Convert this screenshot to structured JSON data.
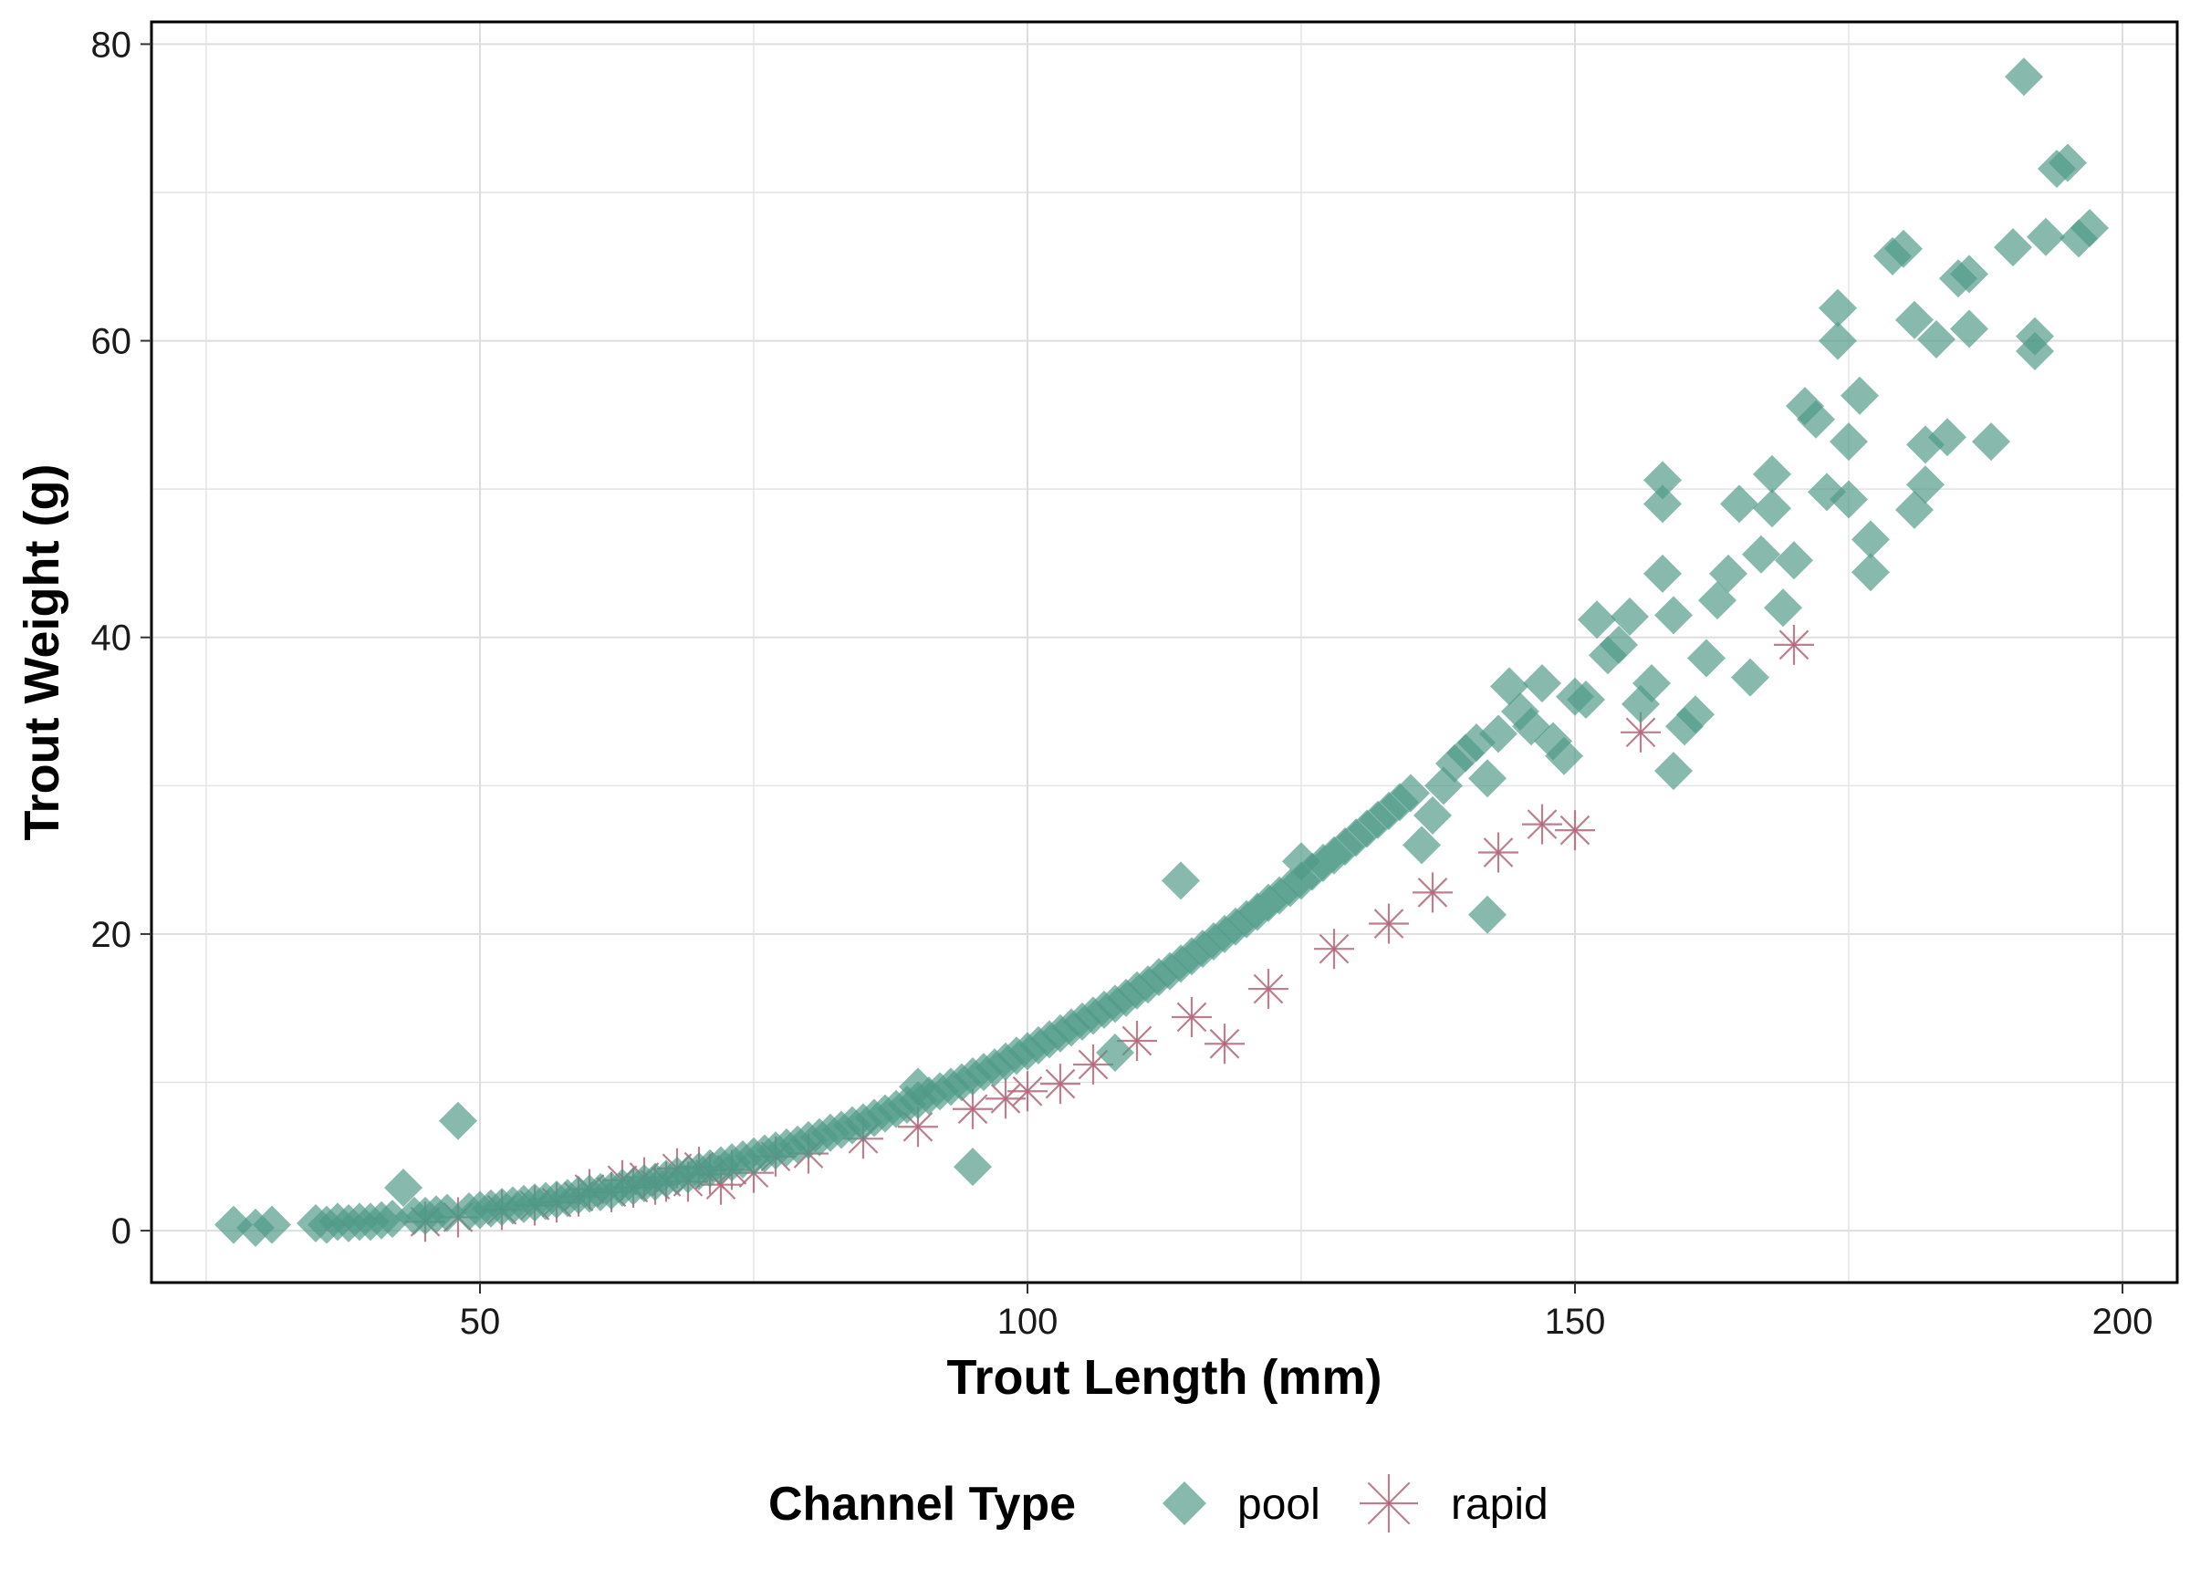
{
  "chart_data": {
    "type": "scatter",
    "title": "",
    "xlabel": "Trout Length (mm)",
    "ylabel": "Trout Weight (g)",
    "xlim": [
      20,
      205
    ],
    "ylim": [
      -3.5,
      81.5
    ],
    "x_ticks": [
      50,
      100,
      150,
      200
    ],
    "y_ticks": [
      0,
      20,
      40,
      60,
      80
    ],
    "grid": true,
    "legend": {
      "title": "Channel Type",
      "position": "bottom"
    },
    "series": [
      {
        "name": "pool",
        "marker": "diamond",
        "color": "#4e9a86",
        "points": [
          [
            27.5,
            0.4
          ],
          [
            29.5,
            0.2
          ],
          [
            31,
            0.4
          ],
          [
            35,
            0.5
          ],
          [
            36,
            0.4
          ],
          [
            37,
            0.6
          ],
          [
            38,
            0.5
          ],
          [
            39,
            0.6
          ],
          [
            40,
            0.6
          ],
          [
            41,
            0.7
          ],
          [
            42,
            0.8
          ],
          [
            43,
            2.9
          ],
          [
            44,
            1.0
          ],
          [
            45,
            1.0
          ],
          [
            46,
            1.1
          ],
          [
            47,
            1.2
          ],
          [
            48,
            7.4
          ],
          [
            49,
            1.3
          ],
          [
            50,
            1.4
          ],
          [
            51,
            1.5
          ],
          [
            52,
            1.6
          ],
          [
            53,
            1.7
          ],
          [
            54,
            1.8
          ],
          [
            55,
            1.9
          ],
          [
            56,
            2.0
          ],
          [
            57,
            2.1
          ],
          [
            58,
            2.2
          ],
          [
            59,
            2.4
          ],
          [
            60,
            2.5
          ],
          [
            61,
            2.6
          ],
          [
            62,
            2.7
          ],
          [
            63,
            2.9
          ],
          [
            64,
            3.0
          ],
          [
            65,
            3.2
          ],
          [
            66,
            3.3
          ],
          [
            67,
            3.5
          ],
          [
            68,
            3.7
          ],
          [
            69,
            3.8
          ],
          [
            70,
            4.0
          ],
          [
            71,
            4.2
          ],
          [
            72,
            4.4
          ],
          [
            73,
            4.6
          ],
          [
            74,
            4.8
          ],
          [
            75,
            5.0
          ],
          [
            76,
            5.2
          ],
          [
            77,
            5.4
          ],
          [
            78,
            5.6
          ],
          [
            79,
            5.8
          ],
          [
            80,
            6.1
          ],
          [
            81,
            6.3
          ],
          [
            82,
            6.6
          ],
          [
            83,
            6.8
          ],
          [
            84,
            7.1
          ],
          [
            85,
            7.3
          ],
          [
            86,
            7.6
          ],
          [
            87,
            7.9
          ],
          [
            88,
            8.2
          ],
          [
            89,
            8.5
          ],
          [
            90,
            8.8
          ],
          [
            90,
            9.7
          ],
          [
            91,
            9.1
          ],
          [
            92,
            9.4
          ],
          [
            93,
            9.7
          ],
          [
            94,
            10.0
          ],
          [
            95,
            10.4
          ],
          [
            95,
            4.3
          ],
          [
            96,
            10.7
          ],
          [
            97,
            11.0
          ],
          [
            98,
            11.4
          ],
          [
            99,
            11.8
          ],
          [
            100,
            12.1
          ],
          [
            101,
            12.5
          ],
          [
            102,
            12.9
          ],
          [
            103,
            13.3
          ],
          [
            104,
            13.7
          ],
          [
            105,
            14.1
          ],
          [
            106,
            14.5
          ],
          [
            107,
            14.9
          ],
          [
            108,
            15.3
          ],
          [
            108,
            12.0
          ],
          [
            109,
            15.7
          ],
          [
            110,
            16.2
          ],
          [
            111,
            16.6
          ],
          [
            112,
            17.1
          ],
          [
            113,
            17.5
          ],
          [
            114,
            23.6
          ],
          [
            114,
            18.0
          ],
          [
            115,
            18.5
          ],
          [
            116,
            19.0
          ],
          [
            117,
            19.5
          ],
          [
            118,
            20.0
          ],
          [
            119,
            20.5
          ],
          [
            120,
            21.0
          ],
          [
            121,
            21.5
          ],
          [
            122,
            22.1
          ],
          [
            123,
            22.6
          ],
          [
            124,
            23.1
          ],
          [
            125,
            24.9
          ],
          [
            125,
            23.6
          ],
          [
            126,
            24.2
          ],
          [
            127,
            24.8
          ],
          [
            128,
            25.3
          ],
          [
            129,
            25.9
          ],
          [
            130,
            26.5
          ],
          [
            131,
            27.1
          ],
          [
            132,
            27.7
          ],
          [
            133,
            28.3
          ],
          [
            134,
            28.9
          ],
          [
            135,
            29.5
          ],
          [
            136,
            26.0
          ],
          [
            137,
            28.0
          ],
          [
            138,
            30.0
          ],
          [
            139,
            31.5
          ],
          [
            140,
            32.2
          ],
          [
            141,
            32.9
          ],
          [
            142,
            21.3
          ],
          [
            142,
            30.5
          ],
          [
            143,
            33.5
          ],
          [
            144,
            36.7
          ],
          [
            145,
            35.0
          ],
          [
            146,
            34.0
          ],
          [
            147,
            36.9
          ],
          [
            148,
            33.0
          ],
          [
            149,
            32.0
          ],
          [
            150,
            36.0
          ],
          [
            151,
            35.8
          ],
          [
            152,
            41.2
          ],
          [
            153,
            38.8
          ],
          [
            154,
            39.5
          ],
          [
            155,
            41.4
          ],
          [
            156,
            35.5
          ],
          [
            157,
            36.9
          ],
          [
            158,
            50.6
          ],
          [
            158,
            44.3
          ],
          [
            158,
            49.0
          ],
          [
            159,
            41.5
          ],
          [
            159,
            31.0
          ],
          [
            160,
            34.0
          ],
          [
            161,
            34.8
          ],
          [
            162,
            38.6
          ],
          [
            163,
            42.5
          ],
          [
            164,
            44.3
          ],
          [
            165,
            49.0
          ],
          [
            166,
            37.3
          ],
          [
            167,
            45.6
          ],
          [
            168,
            51.0
          ],
          [
            168,
            48.7
          ],
          [
            169,
            42.0
          ],
          [
            170,
            45.2
          ],
          [
            171,
            55.6
          ],
          [
            172,
            54.7
          ],
          [
            173,
            49.8
          ],
          [
            174,
            62.2
          ],
          [
            174,
            60.0
          ],
          [
            175,
            53.2
          ],
          [
            175,
            49.3
          ],
          [
            176,
            56.3
          ],
          [
            177,
            46.6
          ],
          [
            177,
            44.4
          ],
          [
            179,
            65.7
          ],
          [
            180,
            66.2
          ],
          [
            181,
            61.4
          ],
          [
            181,
            48.6
          ],
          [
            182,
            53.0
          ],
          [
            182,
            50.3
          ],
          [
            183,
            60.1
          ],
          [
            184,
            53.5
          ],
          [
            185,
            64.2
          ],
          [
            186,
            64.5
          ],
          [
            186,
            60.8
          ],
          [
            188,
            53.2
          ],
          [
            190,
            66.3
          ],
          [
            191,
            77.8
          ],
          [
            192,
            60.3
          ],
          [
            192,
            59.3
          ],
          [
            193,
            67.0
          ],
          [
            194,
            71.6
          ],
          [
            195,
            72.0
          ],
          [
            196,
            66.9
          ],
          [
            197,
            67.6
          ]
        ]
      },
      {
        "name": "rapid",
        "marker": "asterisk",
        "color": "#b2697a",
        "points": [
          [
            45,
            0.6
          ],
          [
            48,
            0.9
          ],
          [
            52,
            1.4
          ],
          [
            55,
            1.7
          ],
          [
            57,
            1.9
          ],
          [
            59,
            2.3
          ],
          [
            60,
            2.8
          ],
          [
            62,
            2.6
          ],
          [
            63,
            3.4
          ],
          [
            64,
            2.9
          ],
          [
            65,
            3.6
          ],
          [
            66,
            3.1
          ],
          [
            67,
            3.3
          ],
          [
            68,
            4.2
          ],
          [
            69,
            3.3
          ],
          [
            70,
            4.3
          ],
          [
            71,
            3.8
          ],
          [
            72,
            3.1
          ],
          [
            73,
            4.1
          ],
          [
            75,
            3.9
          ],
          [
            77,
            5.0
          ],
          [
            80,
            5.2
          ],
          [
            85,
            6.2
          ],
          [
            90,
            7.0
          ],
          [
            95,
            8.2
          ],
          [
            98,
            8.9
          ],
          [
            100,
            9.4
          ],
          [
            103,
            9.9
          ],
          [
            106,
            11.2
          ],
          [
            110,
            12.8
          ],
          [
            115,
            14.4
          ],
          [
            118,
            12.6
          ],
          [
            122,
            16.3
          ],
          [
            128,
            19.0
          ],
          [
            133,
            20.7
          ],
          [
            137,
            22.8
          ],
          [
            143,
            25.5
          ],
          [
            147,
            27.4
          ],
          [
            150,
            27.0
          ],
          [
            156,
            33.6
          ],
          [
            170,
            39.5
          ]
        ]
      }
    ]
  }
}
